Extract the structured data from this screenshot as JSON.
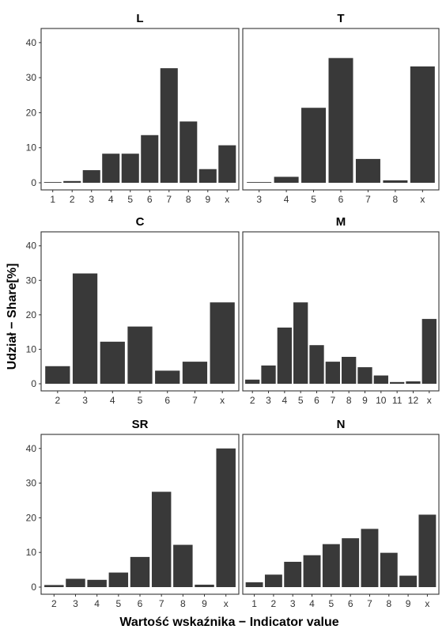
{
  "figure": {
    "xlabel": "Wartość wskaźnika − Indicator value",
    "ylabel": "Udział − Share[%]"
  },
  "chart_data": [
    {
      "type": "bar",
      "title": "L",
      "categories": [
        "1",
        "2",
        "3",
        "4",
        "5",
        "6",
        "7",
        "8",
        "9",
        "x"
      ],
      "values": [
        0.2,
        0.5,
        3.6,
        8.3,
        8.3,
        13.6,
        32.7,
        17.5,
        3.9,
        10.7
      ],
      "ylim": [
        0,
        42
      ],
      "yticks": [
        0,
        10,
        20,
        30,
        40
      ],
      "show_yticks": true,
      "grid": false
    },
    {
      "type": "bar",
      "title": "T",
      "categories": [
        "3",
        "4",
        "5",
        "6",
        "7",
        "8",
        "x"
      ],
      "values": [
        0.2,
        1.7,
        21.4,
        35.6,
        6.8,
        0.7,
        33.2
      ],
      "ylim": [
        0,
        42
      ],
      "yticks": [
        0,
        10,
        20,
        30,
        40
      ],
      "show_yticks": false,
      "grid": false
    },
    {
      "type": "bar",
      "title": "C",
      "categories": [
        "2",
        "3",
        "4",
        "5",
        "6",
        "7",
        "x"
      ],
      "values": [
        5.1,
        32.0,
        12.2,
        16.6,
        3.8,
        6.4,
        23.6
      ],
      "ylim": [
        0,
        42
      ],
      "yticks": [
        0,
        10,
        20,
        30,
        40
      ],
      "show_yticks": true,
      "grid": false
    },
    {
      "type": "bar",
      "title": "M",
      "categories": [
        "2",
        "3",
        "4",
        "5",
        "6",
        "7",
        "8",
        "9",
        "10",
        "11",
        "12",
        "x"
      ],
      "values": [
        1.2,
        5.3,
        16.3,
        23.6,
        11.2,
        6.4,
        7.8,
        4.8,
        2.4,
        0.5,
        0.7,
        18.8
      ],
      "ylim": [
        0,
        42
      ],
      "yticks": [
        0,
        10,
        20,
        30,
        40
      ],
      "show_yticks": false,
      "grid": false
    },
    {
      "type": "bar",
      "title": "SR",
      "categories": [
        "2",
        "3",
        "4",
        "5",
        "6",
        "7",
        "8",
        "9",
        "x"
      ],
      "values": [
        0.6,
        2.4,
        2.1,
        4.2,
        8.7,
        27.5,
        12.2,
        0.7,
        40.0
      ],
      "ylim": [
        0,
        42
      ],
      "yticks": [
        0,
        10,
        20,
        30,
        40
      ],
      "show_yticks": true,
      "grid": false
    },
    {
      "type": "bar",
      "title": "N",
      "categories": [
        "1",
        "2",
        "3",
        "4",
        "5",
        "6",
        "7",
        "8",
        "9",
        "x"
      ],
      "values": [
        1.4,
        3.6,
        7.3,
        9.2,
        12.4,
        14.1,
        16.8,
        9.9,
        3.3,
        20.9
      ],
      "ylim": [
        0,
        42
      ],
      "yticks": [
        0,
        10,
        20,
        30,
        40
      ],
      "show_yticks": false,
      "grid": false
    }
  ]
}
